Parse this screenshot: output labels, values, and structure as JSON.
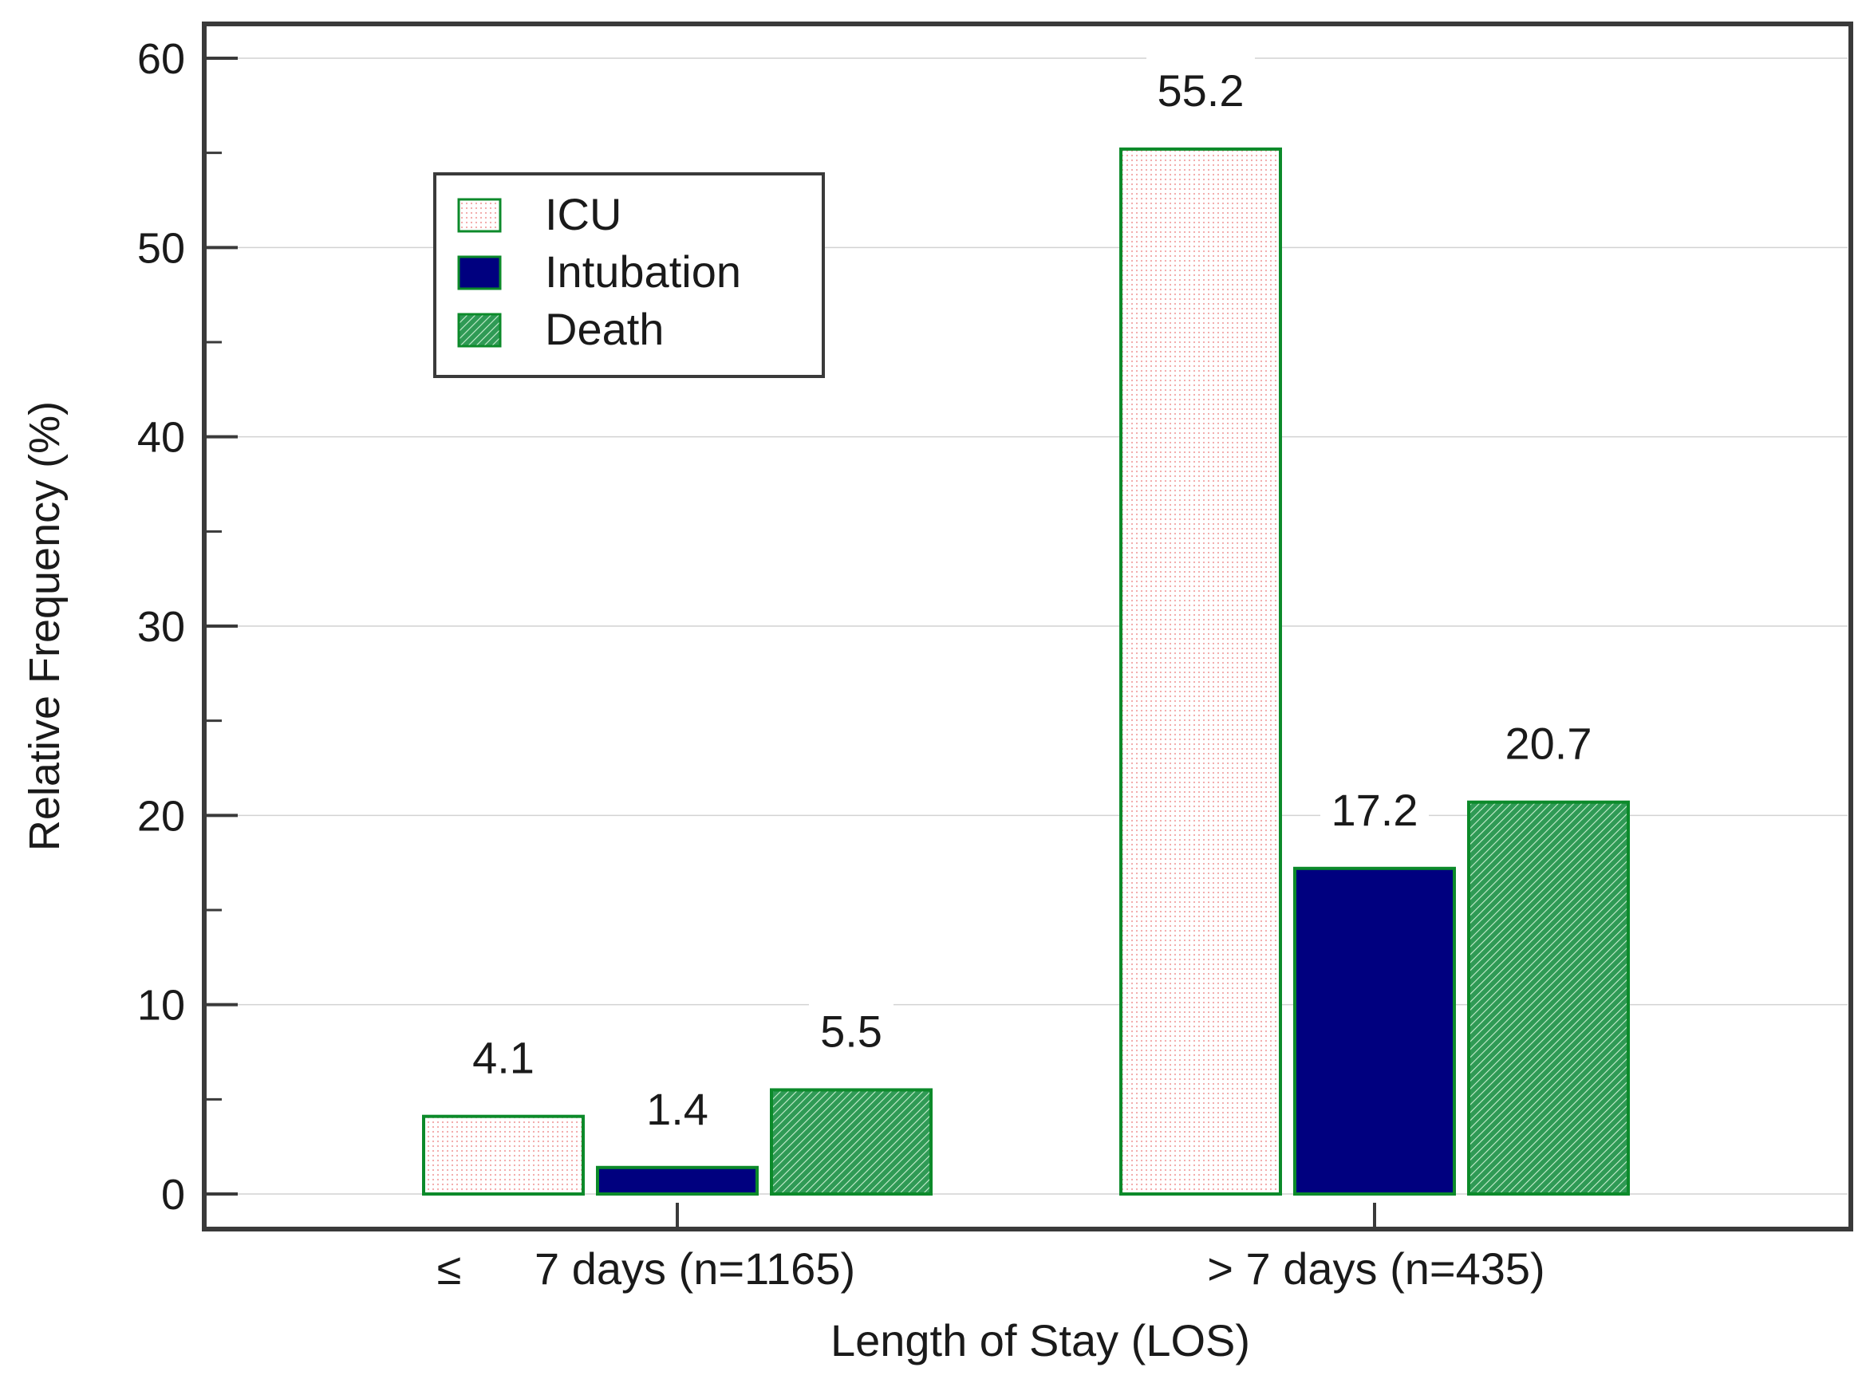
{
  "chart_data": {
    "type": "bar",
    "title": "",
    "xlabel": "Length of Stay (LOS)",
    "ylabel": "Relative Frequency (%)",
    "ylim": [
      0,
      60
    ],
    "yticks": [
      0,
      10,
      20,
      30,
      40,
      50,
      60
    ],
    "ytick_labels": [
      "0",
      "10",
      "20",
      "30",
      "40",
      "50",
      "60"
    ],
    "grid": true,
    "legend_position": "top-left",
    "categories": [
      "≤ 7 days (n=1165)",
      "> 7 days (n=435)"
    ],
    "category_labels": [
      {
        "symbol": "≤",
        "text": "7 days (n=1165)"
      },
      {
        "symbol": "",
        "text": "> 7 days (n=435)"
      }
    ],
    "series": [
      {
        "name": "ICU",
        "values": [
          4.1,
          55.2
        ],
        "value_labels": [
          "4.1",
          "55.2"
        ],
        "fill": "#ffffff",
        "dot_color": "#f2a5a5",
        "stroke": "#0c8a2a",
        "pattern": "dots"
      },
      {
        "name": "Intubation",
        "values": [
          1.4,
          17.2
        ],
        "value_labels": [
          "1.4",
          "17.2"
        ],
        "fill": "#00007f",
        "stroke": "#0c8a2a",
        "pattern": "solid"
      },
      {
        "name": "Death",
        "values": [
          5.5,
          20.7
        ],
        "value_labels": [
          "5.5",
          "20.7"
        ],
        "fill": "#2f9a55",
        "hatch_color": "#c8eed0",
        "stroke": "#0c8a2a",
        "pattern": "hatch"
      }
    ]
  }
}
